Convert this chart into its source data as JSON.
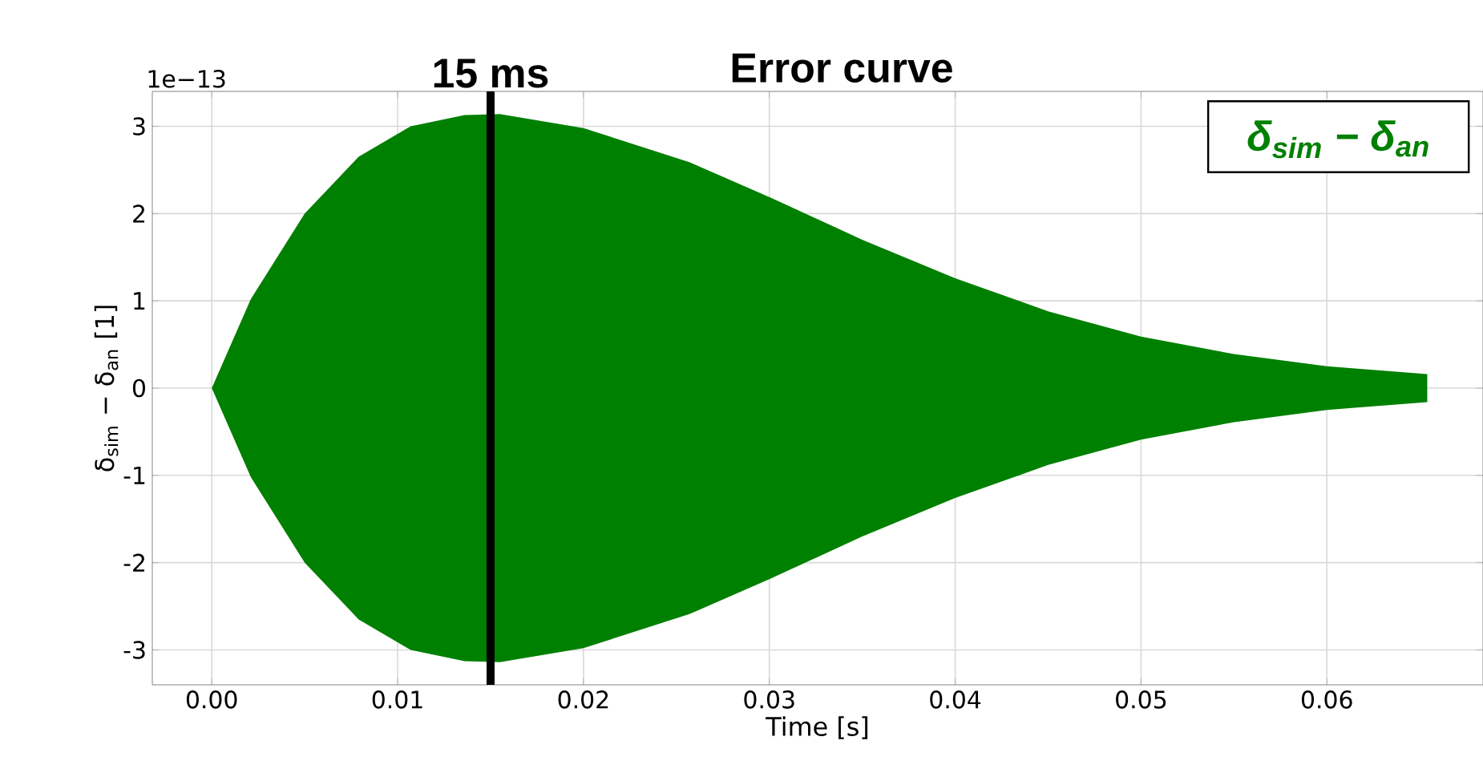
{
  "chart_data": {
    "type": "area",
    "title": "Error curve",
    "xlabel": "Time [s]",
    "ylabel": "δ$_{sim}$ − δ$_{an}$ [1]",
    "annotations": [
      "1e−13"
    ],
    "x": [
      0,
      0.0021,
      0.005,
      0.0079,
      0.0107,
      0.0136,
      0.0155,
      0.02,
      0.0257,
      0.03,
      0.035,
      0.04,
      0.045,
      0.05,
      0.055,
      0.06,
      0.0654
    ],
    "series": [
      {
        "name": "δ$_{sim}$ − δ$_{an}$",
        "color": "#008000",
        "values": [
          0,
          1.02,
          2.0,
          2.65,
          3.0,
          3.13,
          3.14,
          2.98,
          2.59,
          2.19,
          1.7,
          1.26,
          0.88,
          0.59,
          0.39,
          0.25,
          0.16
        ]
      },
      {
        "color": "#008000",
        "values": [
          0,
          -1.02,
          -2.0,
          -2.65,
          -3.0,
          -3.13,
          -3.14,
          -2.98,
          -2.59,
          -2.19,
          -1.7,
          -1.26,
          -0.88,
          -0.59,
          -0.39,
          -0.25,
          -0.16
        ]
      }
    ],
    "xlim": [
      -0.0032,
      0.0684
    ],
    "xticks": [
      {
        "value": 0,
        "label": "0.00"
      },
      {
        "value": 0.01,
        "label": "0.01"
      },
      {
        "value": 0.02,
        "label": "0.02"
      },
      {
        "value": 0.03,
        "label": "0.03"
      },
      {
        "value": 0.04,
        "label": "0.04"
      },
      {
        "value": 0.05,
        "label": "0.05"
      },
      {
        "value": 0.06,
        "label": "0.06"
      }
    ],
    "ylim": [
      -3.4,
      3.4
    ],
    "yticks": [
      -3,
      -2,
      -1,
      0,
      1,
      2,
      3
    ],
    "ref_lines": [
      {
        "axis": "x",
        "value": 0.015,
        "label": "15 ms",
        "color": "#000000"
      }
    ],
    "grid": true,
    "legend": "top right"
  }
}
